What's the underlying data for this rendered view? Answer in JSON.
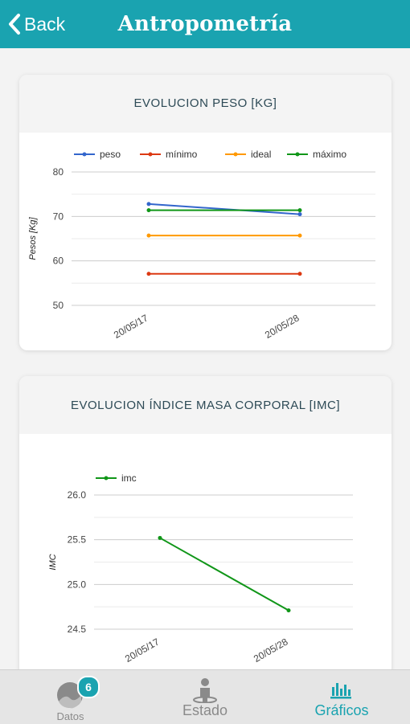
{
  "header": {
    "back_label": "Back",
    "title": "Antropometría"
  },
  "colors": {
    "brand": "#1aa3b0",
    "tab_active": "#1aa3b0",
    "tab_inactive": "#8a8a8a"
  },
  "tabs": [
    {
      "label": "Datos",
      "icon": "gauge-icon",
      "badge": "6"
    },
    {
      "label": "Estado",
      "icon": "person-icon"
    },
    {
      "label": "Gráficos",
      "icon": "bar-chart-icon",
      "active": true
    }
  ],
  "chart_data": [
    {
      "type": "line",
      "title": "EVOLUCION PESO [KG]",
      "categories": [
        "20/05/17",
        "20/05/28"
      ],
      "ylabel": "Pesos [Kg]",
      "ylim": [
        50,
        80
      ],
      "yticks": [
        "50",
        "60",
        "70",
        "80"
      ],
      "grid": true,
      "legend_position": "top",
      "series": [
        {
          "name": "peso",
          "values": [
            72.8,
            70.5
          ],
          "color": "#3366cc"
        },
        {
          "name": "mínimo",
          "values": [
            57.1,
            57.1
          ],
          "color": "#dc3912"
        },
        {
          "name": "ideal",
          "values": [
            65.7,
            65.7
          ],
          "color": "#ff9900"
        },
        {
          "name": "máximo",
          "values": [
            71.4,
            71.4
          ],
          "color": "#109618"
        }
      ]
    },
    {
      "type": "line",
      "title": "EVOLUCION ÍNDICE MASA CORPORAL [IMC]",
      "categories": [
        "20/05/17",
        "20/05/28"
      ],
      "ylabel": "IMC",
      "ylim": [
        24.5,
        26.0
      ],
      "yticks": [
        "24.5",
        "25.0",
        "25.5",
        "26.0"
      ],
      "grid": true,
      "legend_position": "top-left",
      "series": [
        {
          "name": "imc",
          "values": [
            25.52,
            24.71
          ],
          "color": "#109618"
        }
      ]
    }
  ]
}
